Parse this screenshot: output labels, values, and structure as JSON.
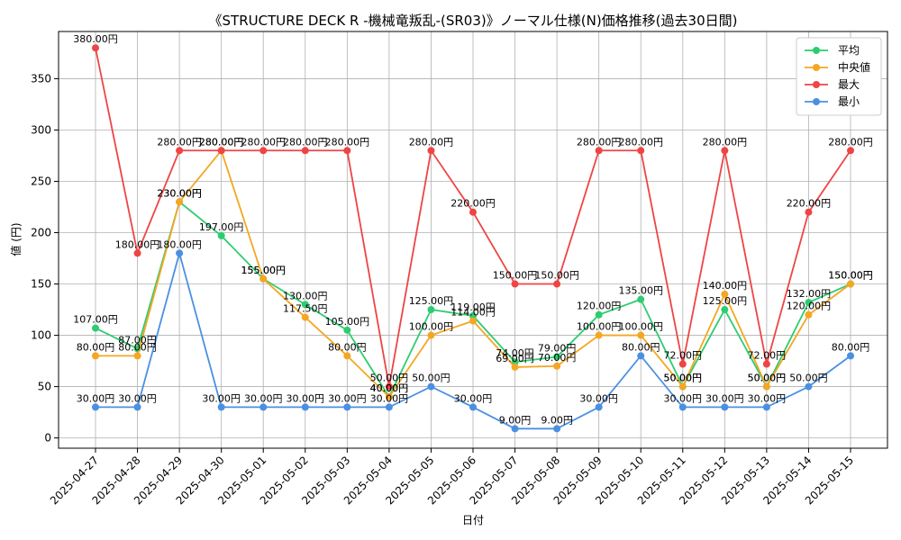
{
  "chart_data": {
    "type": "line",
    "title": "《STRUCTURE DECK R -機械竜叛乱-(SR03)》ノーマル仕様(N)価格推移(過去30日間)",
    "xlabel": "日付",
    "ylabel": "値 (円)",
    "ylim": [
      -10,
      396
    ],
    "yticks": [
      0,
      50,
      100,
      150,
      200,
      250,
      300,
      350
    ],
    "grid": true,
    "legend_position": "top-right",
    "label_suffix": "円",
    "categories": [
      "2025-04-27",
      "2025-04-28",
      "2025-04-29",
      "2025-04-30",
      "2025-05-01",
      "2025-05-02",
      "2025-05-03",
      "2025-05-04",
      "2025-05-05",
      "2025-05-06",
      "2025-05-07",
      "2025-05-08",
      "2025-05-09",
      "2025-05-10",
      "2025-05-11",
      "2025-05-12",
      "2025-05-13",
      "2025-05-14",
      "2025-05-15"
    ],
    "series": [
      {
        "name": "平均",
        "color": "#2ecc71",
        "values": [
          107,
          87,
          230,
          197,
          155,
          130,
          105,
          40,
          125,
          119,
          74,
          79,
          120,
          135,
          50,
          125,
          50,
          132,
          150
        ]
      },
      {
        "name": "中央値",
        "color": "#f5a623",
        "values": [
          80,
          80,
          230,
          280,
          155,
          117.5,
          80,
          40,
          100,
          114,
          69,
          70,
          100,
          100,
          50,
          140,
          50,
          120,
          150
        ]
      },
      {
        "name": "最大",
        "color": "#ef4444",
        "values": [
          380,
          180,
          280,
          280,
          280,
          280,
          280,
          50,
          280,
          220,
          150,
          150,
          280,
          280,
          72,
          280,
          72,
          220,
          280
        ]
      },
      {
        "name": "最小",
        "color": "#4a90e2",
        "values": [
          30,
          30,
          180,
          30,
          30,
          30,
          30,
          30,
          50,
          30,
          9,
          9,
          30,
          80,
          30,
          30,
          30,
          50,
          80
        ]
      }
    ]
  }
}
